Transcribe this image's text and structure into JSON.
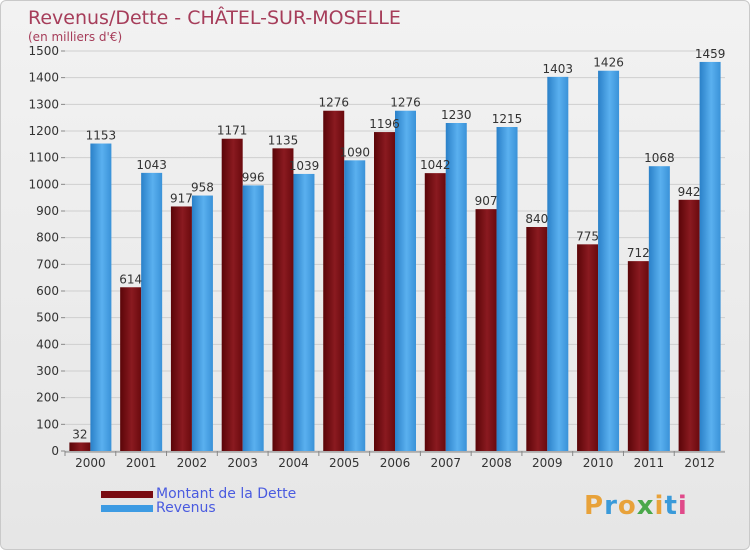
{
  "chart_data": {
    "type": "bar",
    "title": "Revenus/Dette - CHÂTEL-SUR-MOSELLE",
    "subtitle": "(en milliers d'€)",
    "categories": [
      "2000",
      "2001",
      "2002",
      "2003",
      "2004",
      "2005",
      "2006",
      "2007",
      "2008",
      "2009",
      "2010",
      "2011",
      "2012"
    ],
    "series": [
      {
        "name": "Montant de la Dette",
        "color": "#7a0c12",
        "values": [
          32,
          614,
          917,
          1171,
          1135,
          1276,
          1196,
          1042,
          907,
          840,
          775,
          712,
          942
        ]
      },
      {
        "name": "Revenus",
        "color": "#3d9be3",
        "values": [
          1153,
          1043,
          958,
          996,
          1039,
          1090,
          1276,
          1230,
          1215,
          1403,
          1426,
          1068,
          1459
        ]
      }
    ],
    "ylim": [
      0,
      1500
    ],
    "yticks": [
      0,
      100,
      200,
      300,
      400,
      500,
      600,
      700,
      800,
      900,
      1000,
      1100,
      1200,
      1300,
      1400,
      1500
    ],
    "grid": true,
    "legend_position": "bottom-left"
  },
  "logo": {
    "letters": [
      "P",
      "r",
      "o",
      "x",
      "i",
      "t",
      "i"
    ],
    "colors": [
      "#e8a23a",
      "#3a9ad9",
      "#e8a23a",
      "#4aa84a",
      "#e8a23a",
      "#3a9ad9",
      "#e04a8a"
    ]
  }
}
